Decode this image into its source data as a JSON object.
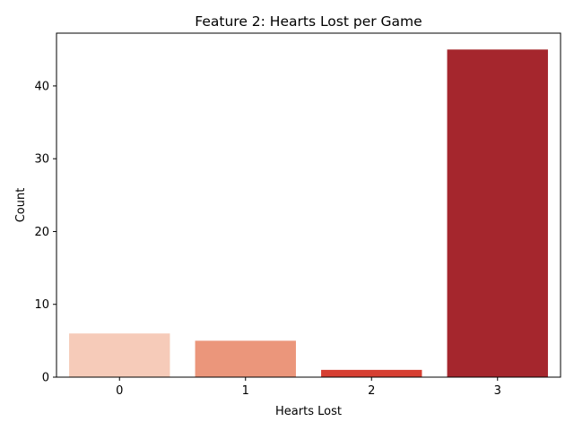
{
  "chart_data": {
    "type": "bar",
    "title": "Feature 2: Hearts Lost per Game",
    "xlabel": "Hearts Lost",
    "ylabel": "Count",
    "categories": [
      "0",
      "1",
      "2",
      "3"
    ],
    "values": [
      6,
      5,
      1,
      45
    ],
    "colors": [
      "#f6cbb9",
      "#eb967b",
      "#d63f32",
      "#a5262d"
    ],
    "ylim": [
      0,
      47.25
    ],
    "yticks": [
      0,
      10,
      20,
      30,
      40
    ],
    "grid": false,
    "legend": "none"
  }
}
